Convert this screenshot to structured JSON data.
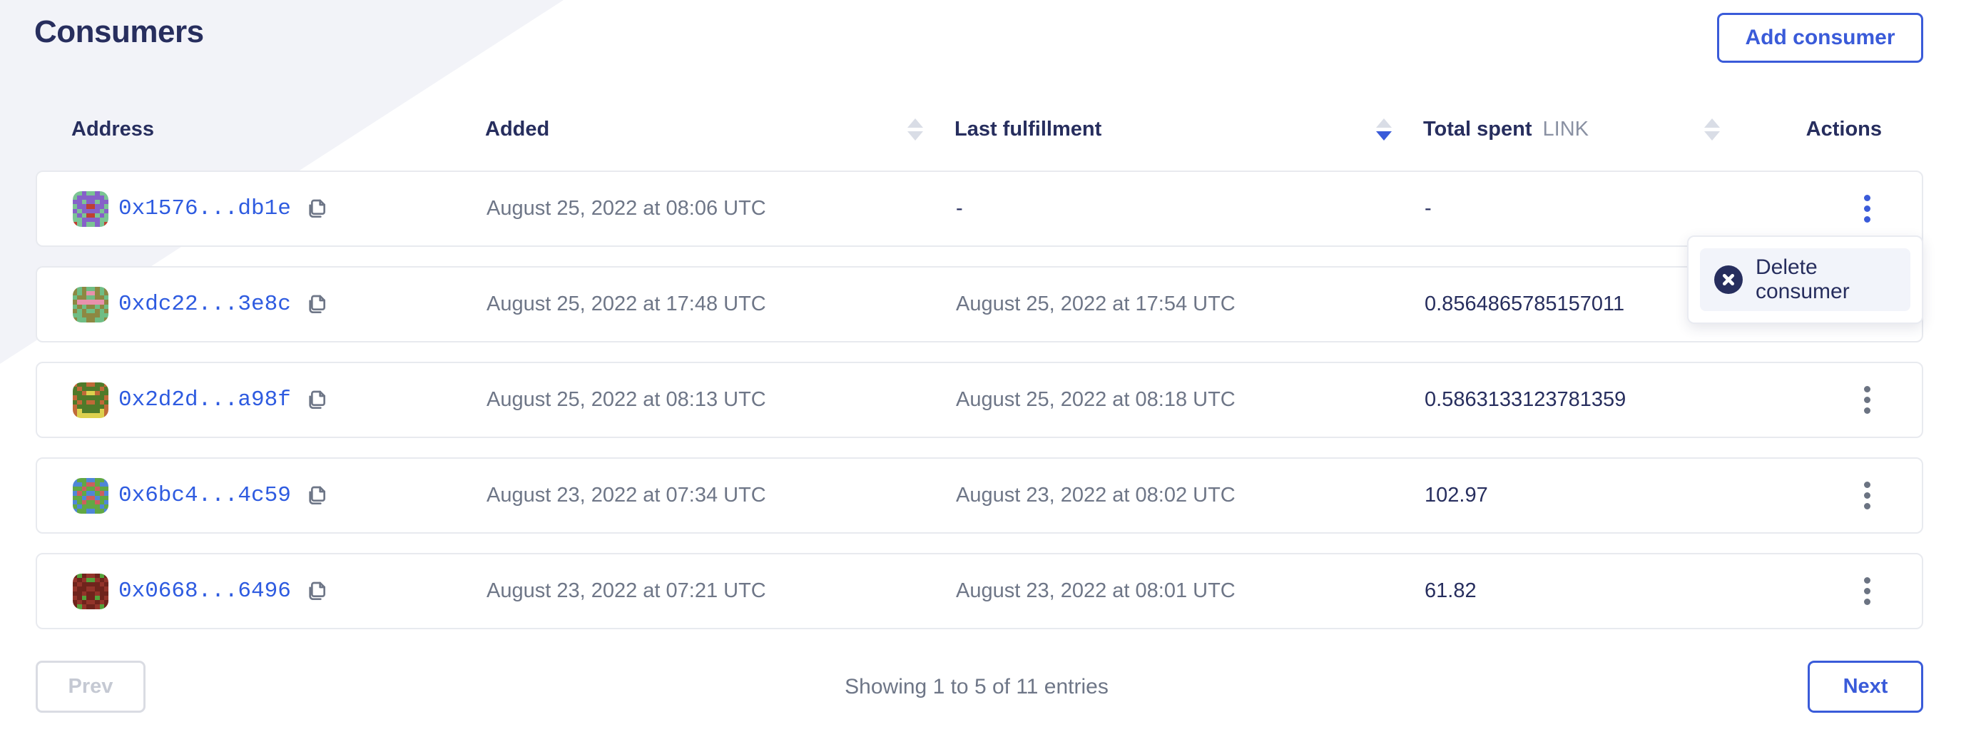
{
  "page_title": "Consumers",
  "colors": {
    "accent": "#3a5bd9",
    "navy": "#272e5e",
    "text_gray": "#6e7687",
    "link_blue": "#2e5be0",
    "bg_tint": "#f2f3f8",
    "arrow_gray": "#d9dde6",
    "sort_active": "#3a5bd9"
  },
  "header": {
    "add_button_label": "Add consumer"
  },
  "table": {
    "columns": [
      {
        "label": "Address",
        "sortable": false,
        "sort": null
      },
      {
        "label": "Added",
        "sortable": true,
        "sort": null
      },
      {
        "label": "Last fulfillment",
        "sortable": true,
        "sort": "desc"
      },
      {
        "label": "Total spent",
        "unit": "LINK",
        "sortable": true,
        "sort": null
      },
      {
        "label": "Actions",
        "sortable": false,
        "sort": null
      }
    ],
    "rows": [
      {
        "address": "0x1576...db1e",
        "added": "August 25, 2022 at 08:06 UTC",
        "last_fulfillment": "-",
        "total_spent": "-",
        "menu_open": true,
        "identicon": {
          "colors": [
            "#7bc494",
            "#8661c9",
            "#bf4031"
          ],
          "pattern": [
            "00100100",
            "01111110",
            "11011011",
            "01122110",
            "10111101",
            "01022010",
            "00111100",
            "20100102"
          ]
        }
      },
      {
        "address": "0xdc22...3e8c",
        "added": "August 25, 2022 at 17:48 UTC",
        "last_fulfillment": "August 25, 2022 at 17:54 UTC",
        "total_spent": "0.8564865785157011",
        "menu_open": false,
        "identicon": {
          "colors": [
            "#6fbd84",
            "#8d8842",
            "#e891ac"
          ],
          "pattern": [
            "10100101",
            "10122101",
            "01100110",
            "12222221",
            "01011010",
            "10100101",
            "00111100",
            "10011001"
          ]
        }
      },
      {
        "address": "0x2d2d...a98f",
        "added": "August 25, 2022 at 08:13 UTC",
        "last_fulfillment": "August 25, 2022 at 08:18 UTC",
        "total_spent": "0.5863133123781359",
        "menu_open": false,
        "identicon": {
          "colors": [
            "#c06a38",
            "#4f7a2a",
            "#ddd04e"
          ],
          "pattern": [
            "01100110",
            "10111101",
            "11022011",
            "01111110",
            "10100101",
            "01111110",
            "02111120",
            "02222220"
          ]
        }
      },
      {
        "address": "0x6bc4...4c59",
        "added": "August 23, 2022 at 07:34 UTC",
        "last_fulfillment": "August 23, 2022 at 08:02 UTC",
        "total_spent": "102.97",
        "menu_open": false,
        "identicon": {
          "colors": [
            "#4f86d8",
            "#61a844",
            "#cc5f5f"
          ],
          "pattern": [
            "01100110",
            "00122100",
            "11211211",
            "02100120",
            "11022011",
            "01211210",
            "10111101",
            "01100110"
          ]
        }
      },
      {
        "address": "0x0668...6496",
        "added": "August 23, 2022 at 07:21 UTC",
        "last_fulfillment": "August 23, 2022 at 08:01 UTC",
        "total_spent": "61.82",
        "menu_open": false,
        "identicon": {
          "colors": [
            "#93342a",
            "#6f241c",
            "#54a23a"
          ],
          "pattern": [
            "12100121",
            "01022010",
            "10111101",
            "01100110",
            "11011011",
            "01211210",
            "10100101",
            "12011021"
          ]
        }
      }
    ]
  },
  "menu": {
    "items": [
      {
        "label": "Delete consumer",
        "icon": "x-circle-icon"
      }
    ]
  },
  "pagination": {
    "prev_label": "Prev",
    "next_label": "Next",
    "summary": "Showing 1 to 5 of 11 entries"
  }
}
